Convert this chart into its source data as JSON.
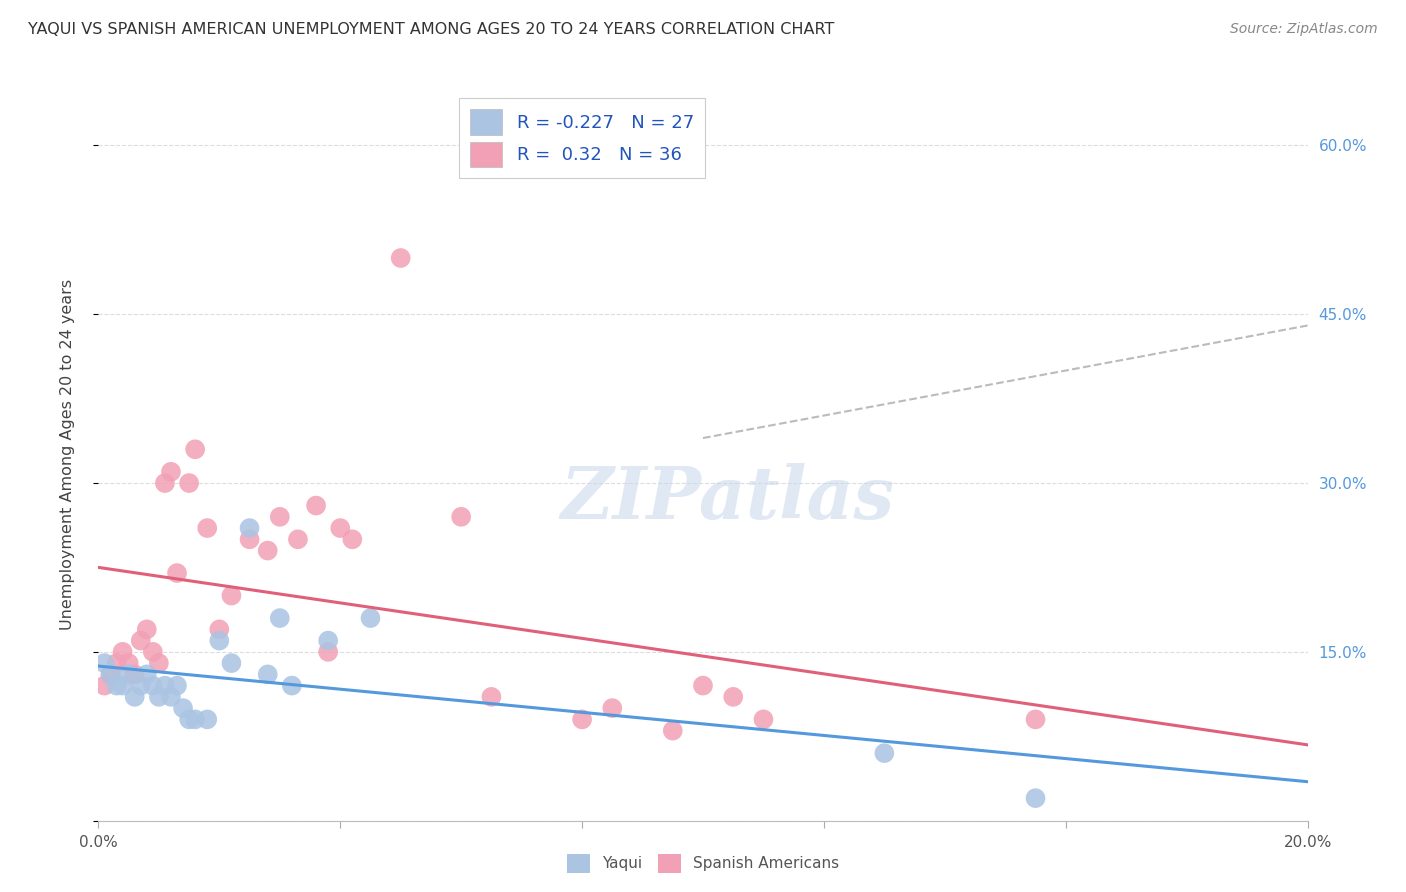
{
  "title": "YAQUI VS SPANISH AMERICAN UNEMPLOYMENT AMONG AGES 20 TO 24 YEARS CORRELATION CHART",
  "source": "Source: ZipAtlas.com",
  "ylabel": "Unemployment Among Ages 20 to 24 years",
  "xlim": [
    0.0,
    0.2
  ],
  "ylim": [
    0.0,
    0.65
  ],
  "yticks_right": [
    0.0,
    0.15,
    0.3,
    0.45,
    0.6
  ],
  "ytick_labels_right": [
    "",
    "15.0%",
    "30.0%",
    "45.0%",
    "60.0%"
  ],
  "yaqui_R": -0.227,
  "yaqui_N": 27,
  "spanish_R": 0.32,
  "spanish_N": 36,
  "yaqui_color": "#aac4e2",
  "spanish_color": "#f2a0b5",
  "yaqui_line_color": "#5599dd",
  "spanish_line_color": "#e0607a",
  "watermark_text": "ZIPatlas",
  "yaqui_x": [
    0.001,
    0.002,
    0.003,
    0.004,
    0.005,
    0.006,
    0.007,
    0.008,
    0.009,
    0.01,
    0.011,
    0.012,
    0.013,
    0.014,
    0.015,
    0.016,
    0.018,
    0.02,
    0.022,
    0.025,
    0.028,
    0.03,
    0.032,
    0.038,
    0.045,
    0.13,
    0.155
  ],
  "yaqui_y": [
    0.14,
    0.13,
    0.12,
    0.12,
    0.13,
    0.11,
    0.12,
    0.13,
    0.12,
    0.11,
    0.12,
    0.11,
    0.12,
    0.1,
    0.09,
    0.09,
    0.09,
    0.16,
    0.14,
    0.26,
    0.13,
    0.18,
    0.12,
    0.16,
    0.18,
    0.06,
    0.02
  ],
  "spanish_x": [
    0.001,
    0.002,
    0.003,
    0.004,
    0.005,
    0.006,
    0.007,
    0.008,
    0.009,
    0.01,
    0.011,
    0.012,
    0.013,
    0.015,
    0.016,
    0.018,
    0.02,
    0.022,
    0.025,
    0.028,
    0.03,
    0.033,
    0.036,
    0.038,
    0.04,
    0.042,
    0.05,
    0.06,
    0.065,
    0.08,
    0.085,
    0.095,
    0.1,
    0.105,
    0.11,
    0.155
  ],
  "spanish_y": [
    0.12,
    0.13,
    0.14,
    0.15,
    0.14,
    0.13,
    0.16,
    0.17,
    0.15,
    0.14,
    0.3,
    0.31,
    0.22,
    0.3,
    0.33,
    0.26,
    0.17,
    0.2,
    0.25,
    0.24,
    0.27,
    0.25,
    0.28,
    0.15,
    0.26,
    0.25,
    0.5,
    0.27,
    0.11,
    0.09,
    0.1,
    0.08,
    0.12,
    0.11,
    0.09,
    0.09
  ],
  "dashed_line_x": [
    0.1,
    0.2
  ],
  "dashed_line_y": [
    0.34,
    0.44
  ]
}
